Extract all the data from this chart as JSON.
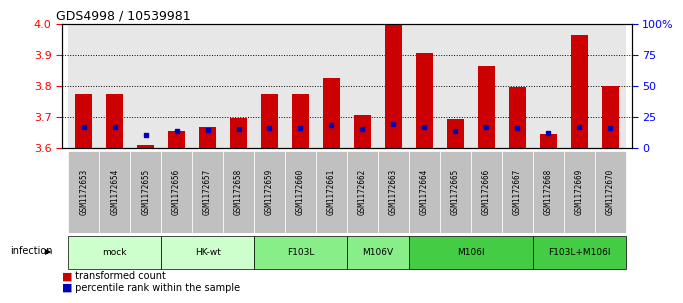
{
  "title": "GDS4998 / 10539981",
  "samples": [
    "GSM1172653",
    "GSM1172654",
    "GSM1172655",
    "GSM1172656",
    "GSM1172657",
    "GSM1172658",
    "GSM1172659",
    "GSM1172660",
    "GSM1172661",
    "GSM1172662",
    "GSM1172663",
    "GSM1172664",
    "GSM1172665",
    "GSM1172666",
    "GSM1172667",
    "GSM1172668",
    "GSM1172669",
    "GSM1172670"
  ],
  "transformed_count": [
    3.775,
    3.775,
    3.607,
    3.655,
    3.668,
    3.695,
    3.775,
    3.775,
    3.825,
    3.705,
    4.0,
    3.905,
    3.692,
    3.863,
    3.795,
    3.645,
    3.965,
    3.798
  ],
  "percentile": [
    17,
    17,
    10,
    13,
    14,
    15,
    16,
    16,
    18,
    15,
    19,
    17,
    13,
    17,
    16,
    12,
    17,
    16
  ],
  "groups": [
    {
      "label": "mock",
      "start": 0,
      "end": 2,
      "color": "#ccffcc"
    },
    {
      "label": "HK-wt",
      "start": 3,
      "end": 5,
      "color": "#ccffcc"
    },
    {
      "label": "F103L",
      "start": 6,
      "end": 8,
      "color": "#88ee88"
    },
    {
      "label": "M106V",
      "start": 9,
      "end": 10,
      "color": "#88ee88"
    },
    {
      "label": "M106I",
      "start": 11,
      "end": 14,
      "color": "#44cc44"
    },
    {
      "label": "F103L+M106I",
      "start": 15,
      "end": 17,
      "color": "#44cc44"
    }
  ],
  "ylim": [
    3.6,
    4.0
  ],
  "y2lim": [
    0,
    100
  ],
  "yticks": [
    3.6,
    3.7,
    3.8,
    3.9,
    4.0
  ],
  "y2ticks": [
    0,
    25,
    50,
    75,
    100
  ],
  "y2ticklabels": [
    "0",
    "25",
    "50",
    "75",
    "100%"
  ],
  "bar_color": "#cc0000",
  "blue_color": "#0000bb",
  "bar_width": 0.55,
  "cell_bg": "#bbbbbb",
  "grid_lines": [
    3.7,
    3.8,
    3.9
  ]
}
